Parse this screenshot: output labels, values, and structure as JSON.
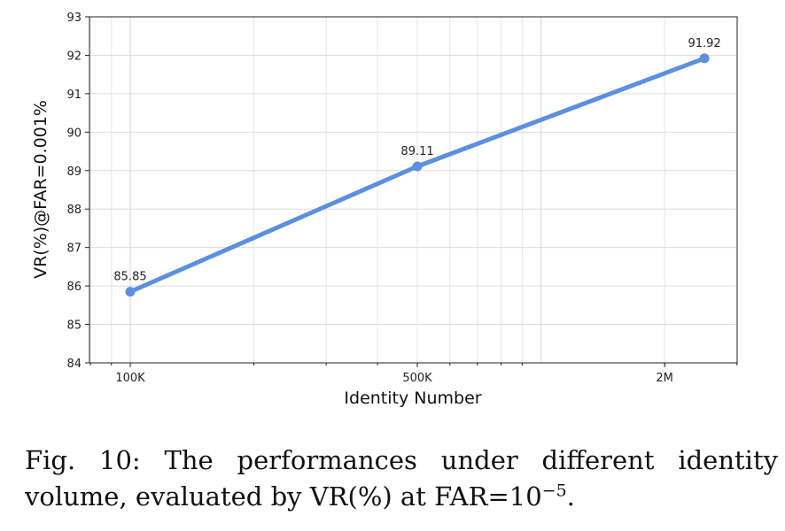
{
  "chart_data": {
    "type": "line",
    "x_scale": "log",
    "xlabel": "Identity Number",
    "ylabel": "VR(%)@FAR=0.001%",
    "ylim": [
      84,
      93
    ],
    "y_ticks": [
      "84",
      "85",
      "86",
      "87",
      "88",
      "89",
      "90",
      "91",
      "92",
      "93"
    ],
    "x_ticks": [
      {
        "value": 100000,
        "label": "100K"
      },
      {
        "value": 500000,
        "label": "500K"
      },
      {
        "value": 2000000,
        "label": "2M"
      }
    ],
    "grid": true,
    "line_color": "#5b8fe0",
    "x": [
      100000,
      500000,
      2500000
    ],
    "series": [
      {
        "values": [
          85.85,
          89.11,
          91.92
        ],
        "labels": [
          "85.85",
          "89.11",
          "91.92"
        ]
      }
    ]
  },
  "caption": {
    "prefix": "Fig. 10: The performances under different identity volume, evaluated by VR(%) at FAR=10",
    "exponent": "−5",
    "suffix": "."
  }
}
